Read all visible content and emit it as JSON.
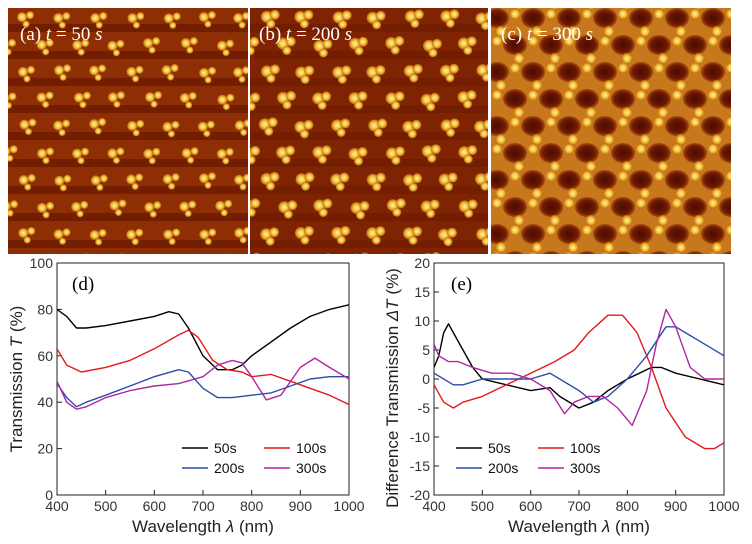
{
  "images": [
    {
      "label": "(a) ",
      "var": "t",
      "eq": " = 50 ",
      "unit": "s"
    },
    {
      "label": "(b) ",
      "var": "t",
      "eq": " = 200 ",
      "unit": "s"
    },
    {
      "label": "(c) ",
      "var": "t",
      "eq": " = 300 ",
      "unit": "s"
    }
  ],
  "colors": {
    "s50": "#000000",
    "s100": "#e31a1c",
    "s200": "#2b4fa8",
    "s300": "#b0279e",
    "afm_dark": "#5a0e00",
    "afm_mid": "#9a3a05",
    "afm_bright": "#f7cf3a"
  },
  "chart_data": [
    {
      "type": "line",
      "panel": "(d)",
      "xlabel_parts": [
        "Wavelength ",
        "λ",
        " (nm)"
      ],
      "ylabel_parts": [
        "Transmission ",
        "T",
        " (%)"
      ],
      "xlim": [
        400,
        1000
      ],
      "ylim": [
        0,
        100
      ],
      "xticks": [
        400,
        500,
        600,
        700,
        800,
        900,
        1000
      ],
      "yticks": [
        0,
        20,
        40,
        60,
        80,
        100
      ],
      "legend_position": "bottom-right",
      "series": [
        {
          "name": "50s",
          "color": "#000000",
          "x": [
            400,
            420,
            440,
            460,
            500,
            550,
            600,
            630,
            650,
            670,
            700,
            730,
            760,
            780,
            800,
            840,
            880,
            920,
            960,
            1000
          ],
          "y": [
            80,
            77,
            72,
            72,
            73,
            75,
            77,
            79,
            78,
            72,
            60,
            54,
            54,
            56,
            60,
            66,
            72,
            77,
            80,
            82
          ]
        },
        {
          "name": "100s",
          "color": "#e31a1c",
          "x": [
            400,
            420,
            450,
            500,
            550,
            600,
            650,
            670,
            690,
            720,
            750,
            780,
            800,
            840,
            880,
            920,
            960,
            1000
          ],
          "y": [
            63,
            56,
            53,
            55,
            58,
            63,
            69,
            71,
            68,
            58,
            54,
            53,
            51,
            52,
            49,
            46,
            43,
            39
          ]
        },
        {
          "name": "200s",
          "color": "#2b4fa8",
          "x": [
            400,
            420,
            440,
            460,
            500,
            550,
            600,
            650,
            670,
            700,
            730,
            760,
            800,
            840,
            880,
            920,
            960,
            1000
          ],
          "y": [
            48,
            42,
            38,
            40,
            43,
            47,
            51,
            54,
            53,
            46,
            42,
            42,
            43,
            44,
            47,
            50,
            51,
            51
          ]
        },
        {
          "name": "300s",
          "color": "#b0279e",
          "x": [
            400,
            420,
            440,
            460,
            500,
            550,
            600,
            650,
            700,
            730,
            760,
            780,
            800,
            830,
            860,
            900,
            930,
            960,
            1000
          ],
          "y": [
            49,
            40,
            37,
            38,
            42,
            45,
            47,
            48,
            51,
            56,
            58,
            57,
            51,
            41,
            43,
            55,
            59,
            55,
            50
          ]
        }
      ]
    },
    {
      "type": "line",
      "panel": "(e)",
      "xlabel_parts": [
        "Wavelength ",
        "λ",
        " (nm)"
      ],
      "ylabel_parts": [
        "Difference Transmission ",
        "ΔT",
        " (%)"
      ],
      "xlim": [
        400,
        1000
      ],
      "ylim": [
        -20,
        20
      ],
      "xticks": [
        400,
        500,
        600,
        700,
        800,
        900,
        1000
      ],
      "yticks": [
        -20,
        -15,
        -10,
        -5,
        0,
        5,
        10,
        15,
        20
      ],
      "legend_position": "bottom-center",
      "series": [
        {
          "name": "50s",
          "color": "#000000",
          "x": [
            400,
            410,
            420,
            430,
            440,
            460,
            480,
            500,
            550,
            600,
            640,
            660,
            700,
            730,
            760,
            800,
            850,
            870,
            900,
            950,
            1000
          ],
          "y": [
            2,
            4,
            8,
            9.5,
            8,
            5,
            2,
            0,
            -1,
            -2,
            -1.5,
            -3,
            -5,
            -4,
            -2,
            0,
            2,
            2,
            1,
            0,
            -1
          ]
        },
        {
          "name": "100s",
          "color": "#e31a1c",
          "x": [
            400,
            420,
            440,
            460,
            500,
            550,
            600,
            650,
            690,
            720,
            760,
            790,
            820,
            850,
            880,
            920,
            960,
            980,
            1000
          ],
          "y": [
            -1,
            -4,
            -5,
            -4,
            -3,
            -1,
            1,
            3,
            5,
            8,
            11,
            11,
            8,
            2,
            -5,
            -10,
            -12,
            -12,
            -11
          ]
        },
        {
          "name": "200s",
          "color": "#2b4fa8",
          "x": [
            400,
            420,
            440,
            460,
            500,
            550,
            600,
            640,
            660,
            700,
            730,
            760,
            800,
            840,
            880,
            900,
            920,
            960,
            1000
          ],
          "y": [
            1,
            0,
            -1,
            -1,
            0,
            0,
            0,
            1,
            0,
            -2,
            -4,
            -3,
            0,
            4,
            9,
            9,
            8,
            6,
            4
          ]
        },
        {
          "name": "300s",
          "color": "#b0279e",
          "x": [
            400,
            410,
            430,
            450,
            480,
            520,
            560,
            600,
            640,
            670,
            690,
            720,
            750,
            780,
            810,
            840,
            860,
            880,
            900,
            930,
            960,
            1000
          ],
          "y": [
            6,
            4,
            3,
            3,
            2,
            1,
            1,
            0,
            -2,
            -6,
            -4,
            -3,
            -3,
            -5,
            -8,
            -2,
            6,
            12,
            9,
            2,
            0,
            0
          ]
        }
      ]
    }
  ]
}
